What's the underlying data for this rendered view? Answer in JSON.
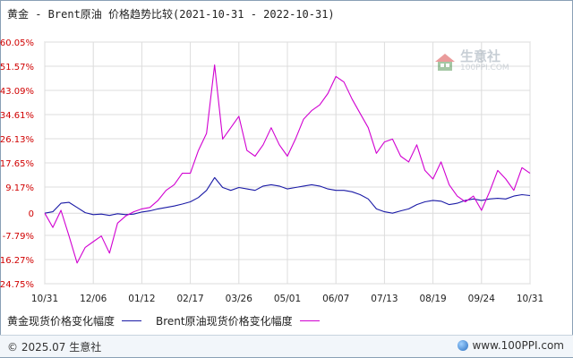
{
  "title": "黄金 - Brent原油 价格趋势比较(2021-10-31 - 2022-10-31)",
  "watermark": {
    "name": "生意社",
    "url": "100PPI.COM"
  },
  "footer": {
    "copyright": "© 2025.07 生意社",
    "site": "www.100PPI.com"
  },
  "chart_data": {
    "type": "line",
    "title": "黄金 - Brent原油 价格趋势比较(2021-10-31 - 2022-10-31)",
    "xlabel": "",
    "ylabel": "",
    "ylim": [
      -24.75,
      60.05
    ],
    "yticks": [
      "60.05%",
      "51.57%",
      "43.09%",
      "34.61%",
      "26.13%",
      "17.65%",
      "9.17%",
      "0",
      "-7.79%",
      "-16.27%",
      "-24.75%"
    ],
    "ytick_values": [
      60.05,
      51.57,
      43.09,
      34.61,
      26.13,
      17.65,
      9.17,
      0,
      -7.79,
      -16.27,
      -24.75
    ],
    "xticks": [
      "10/31",
      "12/06",
      "01/12",
      "02/17",
      "03/26",
      "05/01",
      "06/07",
      "07/13",
      "08/19",
      "09/24",
      "10/31"
    ],
    "grid": true,
    "legend_position": "bottom",
    "x": [
      "10/31",
      "11/06",
      "11/12",
      "11/18",
      "11/24",
      "12/01",
      "12/06",
      "12/12",
      "12/18",
      "12/24",
      "12/30",
      "01/06",
      "01/12",
      "01/18",
      "01/24",
      "01/30",
      "02/05",
      "02/11",
      "02/17",
      "02/23",
      "03/01",
      "03/07",
      "03/13",
      "03/19",
      "03/26",
      "04/01",
      "04/07",
      "04/13",
      "04/19",
      "04/25",
      "05/01",
      "05/07",
      "05/13",
      "05/19",
      "05/25",
      "05/31",
      "06/07",
      "06/13",
      "06/19",
      "06/25",
      "07/01",
      "07/07",
      "07/13",
      "07/19",
      "07/25",
      "07/31",
      "08/06",
      "08/12",
      "08/19",
      "08/25",
      "08/31",
      "09/06",
      "09/12",
      "09/18",
      "09/24",
      "09/30",
      "10/06",
      "10/12",
      "10/18",
      "10/24",
      "10/31"
    ],
    "series": [
      {
        "name": "黄金现货价格变化幅度",
        "color": "#1a1aa6",
        "values": [
          0.0,
          0.5,
          3.5,
          3.8,
          2.0,
          0.2,
          -0.5,
          -0.3,
          -0.8,
          -0.2,
          -0.5,
          -0.3,
          0.4,
          0.8,
          1.5,
          2.0,
          2.5,
          3.2,
          4.0,
          5.5,
          8.0,
          12.5,
          9.0,
          8.0,
          9.0,
          8.5,
          8.0,
          9.5,
          10.0,
          9.5,
          8.5,
          9.0,
          9.5,
          10.0,
          9.5,
          8.5,
          8.0,
          8.0,
          7.5,
          6.5,
          5.0,
          1.5,
          0.5,
          0.0,
          0.8,
          1.5,
          3.0,
          4.0,
          4.5,
          4.2,
          3.0,
          3.5,
          4.5,
          5.0,
          4.5,
          5.0,
          5.2,
          5.0,
          6.0,
          6.5,
          6.2
        ]
      },
      {
        "name": "Brent原油现货价格变化幅度",
        "color": "#d100d1",
        "values": [
          0.0,
          -5.0,
          1.0,
          -8.0,
          -17.5,
          -12.0,
          -10.0,
          -8.0,
          -14.0,
          -3.5,
          -1.0,
          0.5,
          1.5,
          2.0,
          4.5,
          8.0,
          10.0,
          14.0,
          14.0,
          22.0,
          28.0,
          52.0,
          26.0,
          30.0,
          34.0,
          22.0,
          20.0,
          24.0,
          30.0,
          24.0,
          20.0,
          26.0,
          33.0,
          36.0,
          38.0,
          42.0,
          48.0,
          46.0,
          40.0,
          35.0,
          30.0,
          21.0,
          25.0,
          26.0,
          20.0,
          18.0,
          24.0,
          15.0,
          12.0,
          18.0,
          10.0,
          6.0,
          4.0,
          6.0,
          1.0,
          7.5,
          15.0,
          12.0,
          8.0,
          16.0,
          14.0
        ]
      }
    ]
  }
}
